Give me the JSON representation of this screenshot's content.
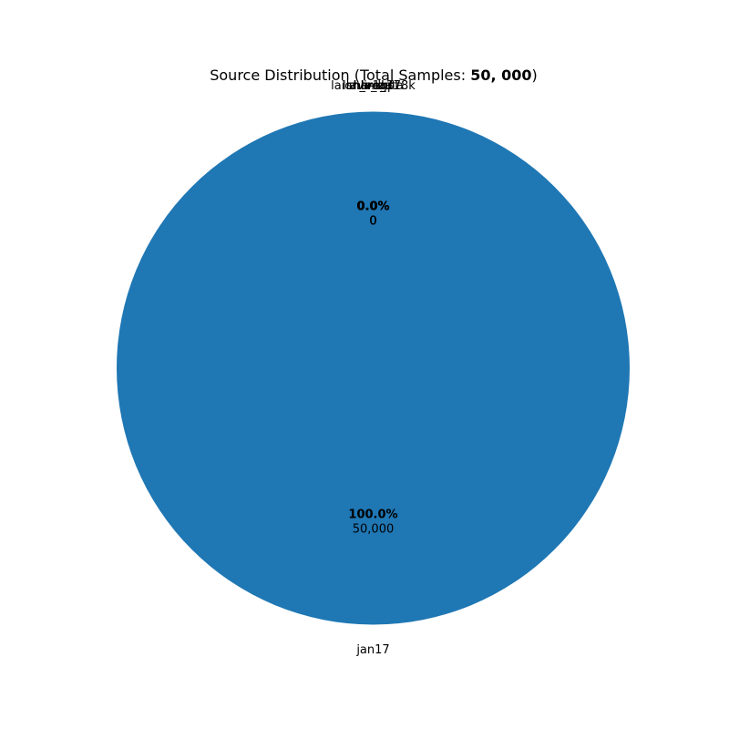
{
  "chart_data": {
    "type": "pie",
    "title": {
      "prefix": "Source Distribution (Total Samples: ",
      "total": "50, 000",
      "suffix": ")"
    },
    "start_angle_deg": 90,
    "counterclock": true,
    "colors": [
      "#1f77b4",
      "#ff7f0e",
      "#2ca02c",
      "#d62728",
      "#9467bd",
      "#8c564b"
    ],
    "slices": [
      {
        "label": "jan17",
        "value": 50000,
        "percent_text": "100.0%",
        "count_text": "50,000"
      },
      {
        "label": "hh-rlhf",
        "value": 0,
        "percent_text": "0.0%",
        "count_text": "0"
      },
      {
        "label": "llava_data",
        "value": 0,
        "percent_text": "0.0%",
        "count_text": "0"
      },
      {
        "label": "lima",
        "value": 0,
        "percent_text": "0.0%",
        "count_text": "0"
      },
      {
        "label": "sharegpt",
        "value": 0,
        "percent_text": "0.0%",
        "count_text": "0"
      },
      {
        "label": "laion_v1_378k",
        "value": 0,
        "percent_text": "0.0%",
        "count_text": "0"
      }
    ]
  }
}
